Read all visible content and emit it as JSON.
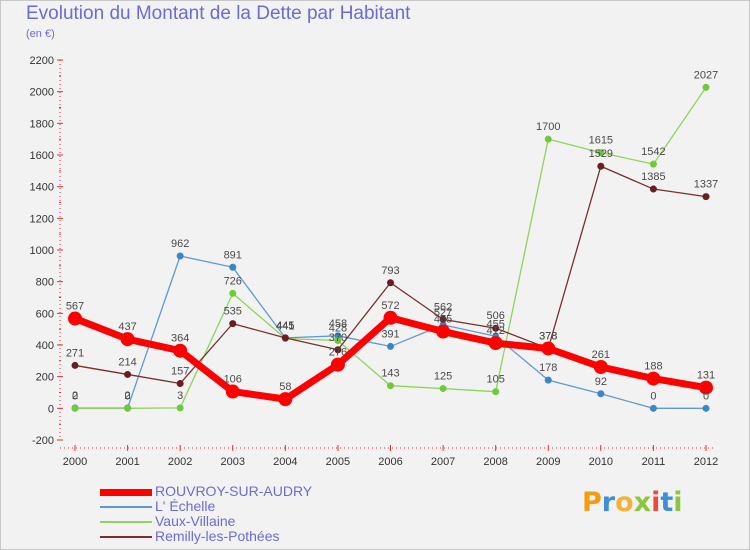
{
  "title": "Evolution du Montant de la Dette par Habitant",
  "subtitle": "(en €)",
  "logo": {
    "text": "Proxiti",
    "letters": [
      {
        "ch": "P",
        "color": "#f39c12"
      },
      {
        "ch": "r",
        "color": "#3d8fd6"
      },
      {
        "ch": "o",
        "color": "#f5b335"
      },
      {
        "ch": "x",
        "color": "#8cc63f"
      },
      {
        "ch": "i",
        "color": "#e74c3c"
      },
      {
        "ch": "t",
        "color": "#3d8fd6"
      },
      {
        "ch": "i",
        "color": "#8cc63f"
      }
    ]
  },
  "chart_data": {
    "type": "line",
    "x": [
      "2000",
      "2001",
      "2002",
      "2003",
      "2004",
      "2005",
      "2006",
      "2007",
      "2008",
      "2009",
      "2010",
      "2011",
      "2012"
    ],
    "ylim": [
      -200,
      2200
    ],
    "yticks": [
      -200,
      0,
      200,
      400,
      600,
      800,
      1000,
      1200,
      1400,
      1600,
      1800,
      2000,
      2200
    ],
    "grid": false,
    "legend_position": "bottom-left",
    "series": [
      {
        "name": "ROUVROY-SUR-AUDRY",
        "color": "#ff0000",
        "width": 7,
        "dot": 7,
        "values": [
          567,
          437,
          364,
          106,
          58,
          276,
          572,
          485,
          412,
          378,
          261,
          188,
          131
        ],
        "labels": [
          "567",
          "437",
          "364",
          "106",
          "58",
          "276",
          "572",
          "485",
          "412",
          "378",
          "261",
          "188",
          "131"
        ]
      },
      {
        "name": "L' Échelle",
        "color": "#5b9bd5",
        "width": 1.3,
        "dot": 3.5,
        "dotColor": "#3a86c8",
        "values": [
          2,
          2,
          962,
          891,
          445,
          458,
          391,
          527,
          455,
          178,
          92,
          0,
          0
        ],
        "labels": [
          "2",
          "2",
          "962",
          "891",
          "445",
          "458",
          "391",
          "527",
          "455",
          "178",
          "92",
          "0",
          "0"
        ]
      },
      {
        "name": "Vaux-Villaine",
        "color": "#8ed45a",
        "width": 1.3,
        "dot": 3.5,
        "dotColor": "#6fc93a",
        "values": [
          0,
          0,
          3,
          726,
          441,
          428,
          143,
          125,
          105,
          1700,
          1615,
          1542,
          2027
        ],
        "labels": [
          "0",
          "0",
          "3",
          "726",
          "441",
          "428",
          "143",
          "125",
          "105",
          "1700",
          "1615",
          "1542",
          "2027"
        ]
      },
      {
        "name": "Remilly-les-Pothées",
        "color": "#7a2e2e",
        "width": 1.3,
        "dot": 3.5,
        "dotColor": "#6b1e1e",
        "values": [
          271,
          214,
          157,
          535,
          445,
          370,
          793,
          562,
          506,
          378,
          1529,
          1385,
          1337
        ],
        "labels": [
          "271",
          "214",
          "157",
          "535",
          "445",
          "370",
          "793",
          "562",
          "506",
          "378",
          "1529",
          "1385",
          "1337"
        ]
      }
    ]
  }
}
